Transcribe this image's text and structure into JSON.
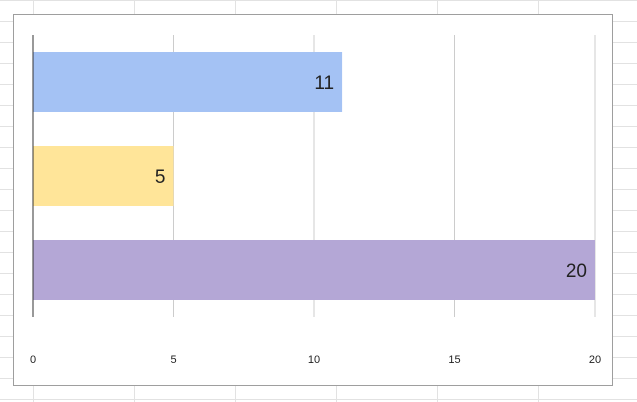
{
  "chart_data": {
    "type": "bar",
    "orientation": "horizontal",
    "categories": [
      "",
      "",
      ""
    ],
    "values": [
      11,
      5,
      20
    ],
    "colors": [
      "#a4c2f4",
      "#ffe599",
      "#b4a7d6"
    ],
    "xlim": [
      0,
      20
    ],
    "x_ticks": [
      0,
      5,
      10,
      15,
      20
    ],
    "data_labels": [
      "11",
      "5",
      "20"
    ],
    "title": "",
    "xlabel": "",
    "ylabel": "",
    "grid": true,
    "legend": "none"
  }
}
